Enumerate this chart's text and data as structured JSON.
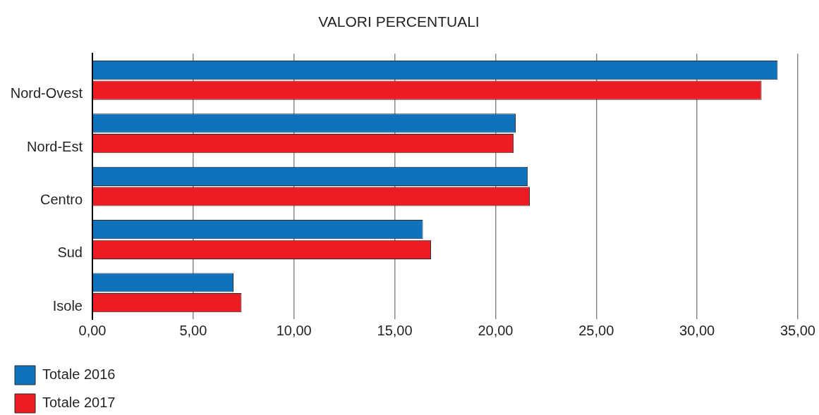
{
  "chart_data": {
    "type": "bar",
    "orientation": "horizontal",
    "title": "VALORI PERCENTUALI",
    "categories": [
      "Nord-Ovest",
      "Nord-Est",
      "Centro",
      "Sud",
      "Isole"
    ],
    "series": [
      {
        "name": "Totale 2016",
        "color": "#1172bc",
        "values": [
          34.0,
          21.0,
          21.6,
          16.4,
          7.0
        ]
      },
      {
        "name": "Totale 2017",
        "color": "#ed1c24",
        "values": [
          33.2,
          20.9,
          21.7,
          16.8,
          7.4
        ]
      }
    ],
    "xlim": [
      0,
      35
    ],
    "xticks": [
      {
        "value": 0,
        "label": "0,00"
      },
      {
        "value": 5,
        "label": "5,00"
      },
      {
        "value": 10,
        "label": "10,00"
      },
      {
        "value": 15,
        "label": "15,00"
      },
      {
        "value": 20,
        "label": "20,00"
      },
      {
        "value": 25,
        "label": "25,00"
      },
      {
        "value": 30,
        "label": "30,00"
      },
      {
        "value": 35,
        "label": "35,00"
      }
    ],
    "grid": "x",
    "legend": "bottom left"
  }
}
